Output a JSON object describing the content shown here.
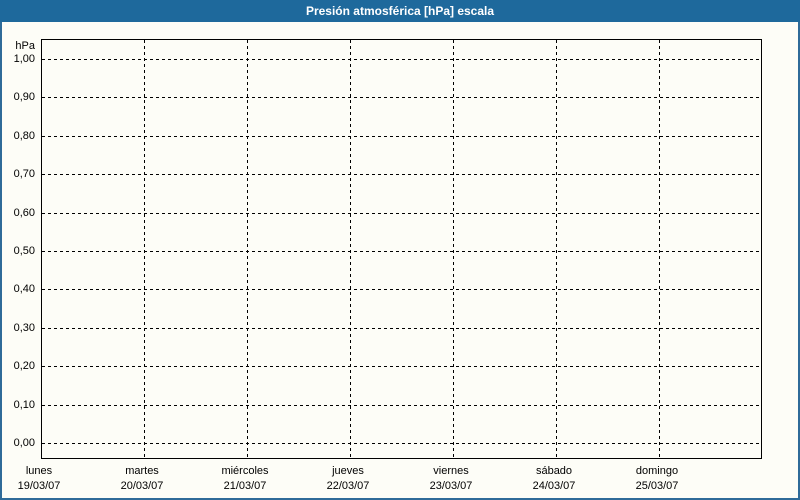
{
  "window": {
    "title": "Presión atmosférica [hPa] escala"
  },
  "colors": {
    "titlebar_bg": "#1e699c",
    "titlebar_text": "#ffffff",
    "frame_border": "#2f6b99",
    "background": "#fdfdf7",
    "grid_line": "#000000",
    "label_text": "#000000"
  },
  "chart_data": {
    "type": "line",
    "title": "Presión atmosférica [hPa] escala",
    "unit_label": "hPa",
    "ylabel": "hPa",
    "ylim": [
      0.0,
      1.0
    ],
    "y_tick_step": 0.1,
    "y_tick_labels_top_to_bottom": [
      "1,00",
      "0,90",
      "0,80",
      "0,70",
      "0,60",
      "0,50",
      "0,40",
      "0,30",
      "0,20",
      "0,10",
      "0,00"
    ],
    "y_tick_values_top_to_bottom": [
      1.0,
      0.9,
      0.8,
      0.7,
      0.6,
      0.5,
      0.4,
      0.3,
      0.2,
      0.1,
      0.0
    ],
    "x_days": [
      {
        "day": "lunes",
        "date": "19/03/07"
      },
      {
        "day": "martes",
        "date": "20/03/07"
      },
      {
        "day": "miércoles",
        "date": "21/03/07"
      },
      {
        "day": "jueves",
        "date": "22/03/07"
      },
      {
        "day": "viernes",
        "date": "23/03/07"
      },
      {
        "day": "sábado",
        "date": "24/03/07"
      },
      {
        "day": "domingo",
        "date": "25/03/07"
      }
    ],
    "grid": true,
    "grid_style": "dashed",
    "legend": "none",
    "series": []
  }
}
